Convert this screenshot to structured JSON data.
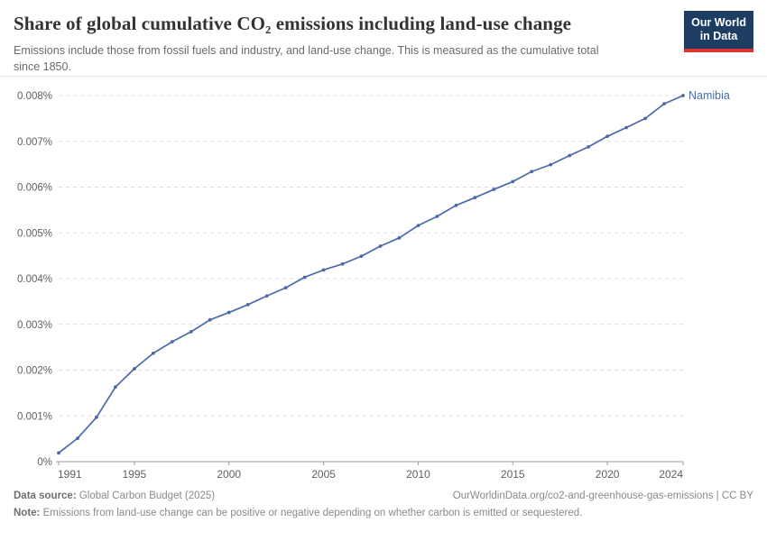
{
  "header": {
    "title": "Share of global cumulative CO₂ emissions including land-use change",
    "subtitle": "Emissions include those from fossil fuels and industry, and land-use change. This is measured as the cumulative total since 1850.",
    "logo_text": "Our World\nin Data",
    "logo_bg": "#1d3d63",
    "logo_stripe": "#d8352e"
  },
  "chart_data": {
    "type": "line",
    "title": "Share of global cumulative CO₂ emissions including land-use change",
    "xlabel": "",
    "ylabel": "",
    "grid": "horizontal-dashed",
    "legend_position": "end-of-line",
    "xlim": [
      1991,
      2024
    ],
    "ylim": [
      0,
      0.008
    ],
    "yticks": [
      {
        "value": 0,
        "label": "0%"
      },
      {
        "value": 0.001,
        "label": "0.001%"
      },
      {
        "value": 0.002,
        "label": "0.002%"
      },
      {
        "value": 0.003,
        "label": "0.003%"
      },
      {
        "value": 0.004,
        "label": "0.004%"
      },
      {
        "value": 0.005,
        "label": "0.005%"
      },
      {
        "value": 0.006,
        "label": "0.006%"
      },
      {
        "value": 0.007,
        "label": "0.007%"
      },
      {
        "value": 0.008,
        "label": "0.008%"
      }
    ],
    "xticks": [
      {
        "value": 1991,
        "label": "1991"
      },
      {
        "value": 1995,
        "label": "1995"
      },
      {
        "value": 2000,
        "label": "2000"
      },
      {
        "value": 2005,
        "label": "2005"
      },
      {
        "value": 2010,
        "label": "2010"
      },
      {
        "value": 2015,
        "label": "2015"
      },
      {
        "value": 2020,
        "label": "2020"
      },
      {
        "value": 2024,
        "label": "2024"
      }
    ],
    "series": [
      {
        "name": "Namibia",
        "color": "#4b6aaa",
        "x": [
          1991,
          1992,
          1993,
          1994,
          1995,
          1996,
          1997,
          1998,
          1999,
          2000,
          2001,
          2002,
          2003,
          2004,
          2005,
          2006,
          2007,
          2008,
          2009,
          2010,
          2011,
          2012,
          2013,
          2014,
          2015,
          2016,
          2017,
          2018,
          2019,
          2020,
          2021,
          2022,
          2023,
          2024
        ],
        "values": [
          0.00019,
          0.00051,
          0.00097,
          0.00163,
          0.00203,
          0.00237,
          0.00262,
          0.00284,
          0.0031,
          0.00326,
          0.00343,
          0.00362,
          0.0038,
          0.00403,
          0.00419,
          0.00432,
          0.00449,
          0.00471,
          0.00489,
          0.00516,
          0.00536,
          0.0056,
          0.00577,
          0.00595,
          0.00612,
          0.00634,
          0.00649,
          0.00669,
          0.00688,
          0.00711,
          0.0073,
          0.0075,
          0.00782,
          0.008
        ]
      }
    ]
  },
  "footer": {
    "source_label": "Data source:",
    "source_text": " Global Carbon Budget (2025)",
    "url_text": "OurWorldinData.org/co2-and-greenhouse-gas-emissions | CC BY",
    "note_label": "Note:",
    "note_text": " Emissions from land-use change can be positive or negative depending on whether carbon is emitted or sequestered."
  }
}
